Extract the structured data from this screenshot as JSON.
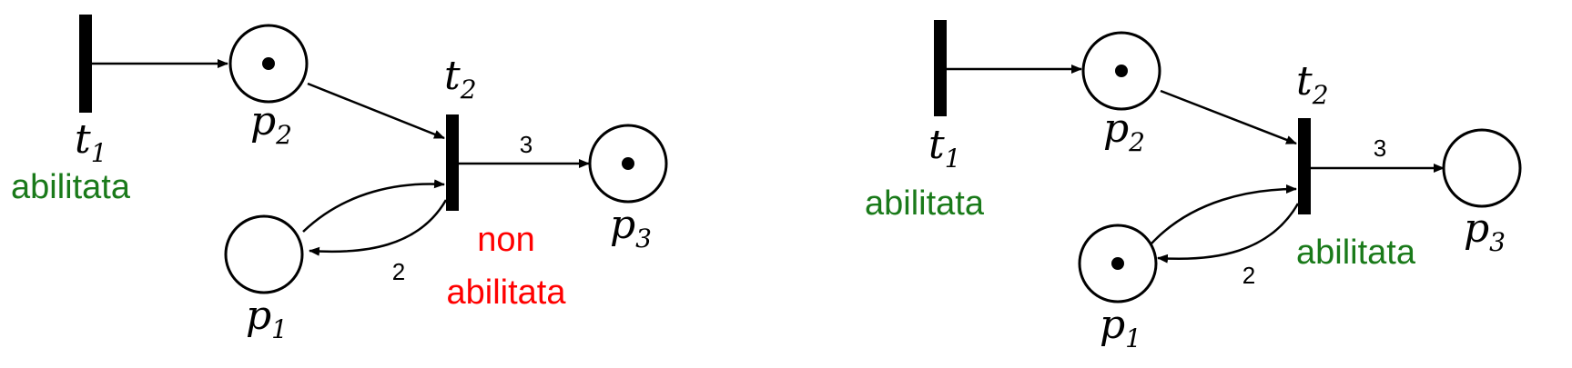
{
  "colors": {
    "enabled": "#1a7a1a",
    "disabled": "#ff0000",
    "ink": "#000000"
  },
  "left_net": {
    "t1": {
      "name": "t",
      "sub": "1",
      "status": "abilitata"
    },
    "t2": {
      "name": "t",
      "sub": "2",
      "status_line1": "non",
      "status_line2": "abilitata"
    },
    "p1": {
      "name": "p",
      "sub": "1",
      "tokens": 0
    },
    "p2": {
      "name": "p",
      "sub": "2",
      "tokens": 1
    },
    "p3": {
      "name": "p",
      "sub": "3",
      "tokens": 1
    },
    "weight_t2_p3": "3",
    "weight_t2_p1": "2"
  },
  "right_net": {
    "t1": {
      "name": "t",
      "sub": "1",
      "status": "abilitata"
    },
    "t2": {
      "name": "t",
      "sub": "2",
      "status": "abilitata"
    },
    "p1": {
      "name": "p",
      "sub": "1",
      "tokens": 1
    },
    "p2": {
      "name": "p",
      "sub": "2",
      "tokens": 1
    },
    "p3": {
      "name": "p",
      "sub": "3",
      "tokens": 0
    },
    "weight_t2_p3": "3",
    "weight_t2_p1": "2"
  }
}
